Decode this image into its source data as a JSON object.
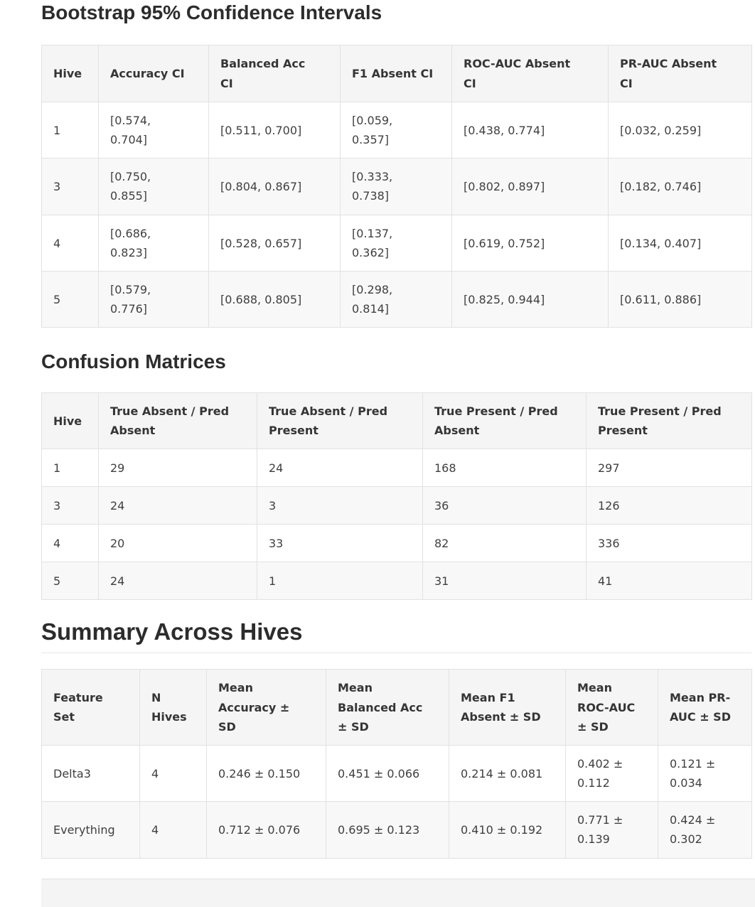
{
  "colors": {
    "heading_text": "#2c2c2c",
    "cell_text": "#3f3f3f",
    "table_header_bg": "#f5f5f5",
    "row_alt_bg": "#f8f8f8",
    "table_border": "#e2e2e2",
    "h1_underline": "#e8e8e8"
  },
  "sections": [
    {
      "title": "Bootstrap 95% Confidence Intervals",
      "table": {
        "headers": [
          "Hive",
          "Accuracy CI",
          "Balanced Acc CI",
          "F1 Absent CI",
          "ROC-AUC Absent CI",
          "PR-AUC Absent CI"
        ],
        "rows": [
          [
            "1",
            "[0.574, 0.704]",
            "[0.511, 0.700]",
            "[0.059, 0.357]",
            "[0.438, 0.774]",
            "[0.032, 0.259]"
          ],
          [
            "3",
            "[0.750, 0.855]",
            "[0.804, 0.867]",
            "[0.333, 0.738]",
            "[0.802, 0.897]",
            "[0.182, 0.746]"
          ],
          [
            "4",
            "[0.686, 0.823]",
            "[0.528, 0.657]",
            "[0.137, 0.362]",
            "[0.619, 0.752]",
            "[0.134, 0.407]"
          ],
          [
            "5",
            "[0.579, 0.776]",
            "[0.688, 0.805]",
            "[0.298, 0.814]",
            "[0.825, 0.944]",
            "[0.611, 0.886]"
          ]
        ]
      }
    },
    {
      "title": "Confusion Matrices",
      "table": {
        "headers": [
          "Hive",
          "True Absent / Pred Absent",
          "True Absent / Pred Present",
          "True Present / Pred Absent",
          "True Present / Pred Present"
        ],
        "rows": [
          [
            "1",
            "29",
            "24",
            "168",
            "297"
          ],
          [
            "3",
            "24",
            "3",
            "36",
            "126"
          ],
          [
            "4",
            "20",
            "33",
            "82",
            "336"
          ],
          [
            "5",
            "24",
            "1",
            "31",
            "41"
          ]
        ]
      }
    },
    {
      "title": "Summary Across Hives",
      "table": {
        "headers": [
          "Feature Set",
          "N Hives",
          "Mean Accuracy ± SD",
          "Mean Balanced Acc ± SD",
          "Mean F1 Absent ± SD",
          "Mean ROC-AUC ± SD",
          "Mean PR-AUC ± SD"
        ],
        "rows": [
          [
            "Delta3",
            "4",
            "0.246 ± 0.150",
            "0.451 ± 0.066",
            "0.214 ± 0.081",
            "0.402 ± 0.112",
            "0.121 ± 0.034"
          ],
          [
            "Everything",
            "4",
            "0.712 ± 0.076",
            "0.695 ± 0.123",
            "0.410 ± 0.192",
            "0.771 ± 0.139",
            "0.424 ± 0.302"
          ]
        ]
      }
    }
  ]
}
